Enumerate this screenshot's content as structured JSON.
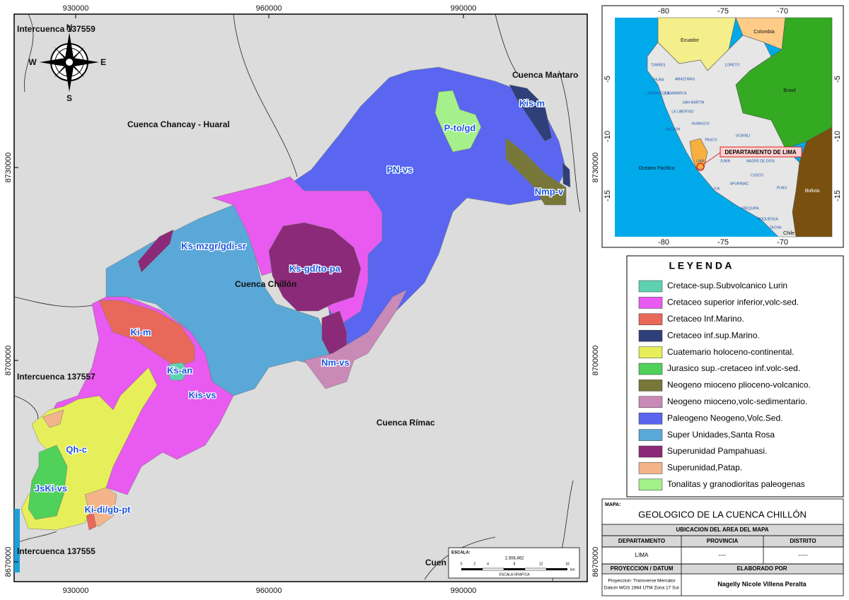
{
  "map": {
    "x_ticks": [
      930000,
      960000,
      990000
    ],
    "y_ticks": [
      8730000,
      8700000,
      8670000
    ],
    "compass": [
      "N",
      "S",
      "E",
      "W"
    ],
    "basin_labels": [
      "Intercuenca 137559",
      "Cuenca Chancay - Huaral",
      "Cuenca Mantaro",
      "Cuenca Chillón",
      "Intercuenca 137557",
      "Cuenca Rímac",
      "Intercuenca 137555",
      "Cuen"
    ],
    "unit_labels": [
      "Kis-m",
      "P-to/gd",
      "PN-vs",
      "Nmp-v",
      "Ks-mzgr/gdi-sr",
      "Ks-gd/to-pa",
      "Ki-m",
      "Ks-an",
      "Nm-vs",
      "Kis-vs",
      "Qh-c",
      "JsKi-vs",
      "Ki-di/gb-pt"
    ]
  },
  "scale": {
    "label": "ESCALA:",
    "ratio": "1:308,462",
    "ticks": [
      0,
      2,
      4,
      8,
      12,
      16
    ],
    "unit": "km",
    "caption": "ESCALA GRAFICA"
  },
  "inset": {
    "x_ticks": [
      -80,
      -75,
      -70
    ],
    "y_ticks": [
      -5,
      -10,
      -15
    ],
    "countries": [
      "Ecuador",
      "Colombia",
      "Brasil",
      "Bolivia",
      "Chile"
    ],
    "ocean": "Oceano Pacifico",
    "callout": "DEPARTAMENTO DE LIMA",
    "regions": [
      "TUMBES",
      "PIURA",
      "AMAZONAS",
      "LORETO",
      "LAMBAYEQUE",
      "CAJAMARCA",
      "LA LIBERTAD",
      "SAN MARTIN",
      "ANCASH",
      "HUANUCO",
      "PASCO",
      "UCAYALI",
      "LIMA",
      "JUNIN",
      "MADRE DE DIOS",
      "CUSCO",
      "APURIMAC",
      "ICA",
      "PUNO",
      "AREQUIPA",
      "MOQUEGUA",
      "TACNA"
    ]
  },
  "legend": {
    "title": "L E Y E N D A",
    "items": [
      {
        "label": "Cretace-sup.Subvolcanico Lurin",
        "color": "#5fd1b3"
      },
      {
        "label": "Cretaceo  superior inferior,volc-sed.",
        "color": "#e85af0"
      },
      {
        "label": "Cretaceo Inf.Marino.",
        "color": "#e8685a"
      },
      {
        "label": "Cretaceo inf.sup.Marino.",
        "color": "#2e3f7a"
      },
      {
        "label": "Cuatemario holoceno-continental.",
        "color": "#e6ef5a"
      },
      {
        "label": "Jurasico sup.-cretaceo inf.volc-sed.",
        "color": "#4fd15a"
      },
      {
        "label": "Neogeno mioceno plioceno-volcanico.",
        "color": "#77773a"
      },
      {
        "label": "Neogeno mioceno,volc-sedimentario.",
        "color": "#c98ab8"
      },
      {
        "label": "Paleogeno Neogeno,Volc.Sed.",
        "color": "#5a66f0"
      },
      {
        "label": "Super Unidades,Santa Rosa",
        "color": "#5aa8d8"
      },
      {
        "label": "Superunidad Pampahuasi.",
        "color": "#8a2a78"
      },
      {
        "label": "Superunidad,Patap.",
        "color": "#f4b48a"
      },
      {
        "label": "Tonalitas y granodioritas paleogenas",
        "color": "#a4f08a"
      }
    ]
  },
  "title_block": {
    "map_label": "MAPA:",
    "title": "GEOLOGICO DE LA CUENCA CHILLÓN",
    "location_header": "UBICACION DEL AREA DEL MAPA",
    "headers": [
      "DEPARTAMENTO",
      "PROVINCIA",
      "DISTRITO"
    ],
    "values": [
      "LIMA",
      "----",
      "-----"
    ],
    "projection_header": "PROYECCION / DATUM",
    "author_header": "ELABORADO POR",
    "projection": [
      "Proyeccion: Transverse Mercator",
      "Datum WGS 1984 UTM Zona 17 Sur"
    ],
    "author": "Nagelly Nicole Villena Peralta"
  }
}
